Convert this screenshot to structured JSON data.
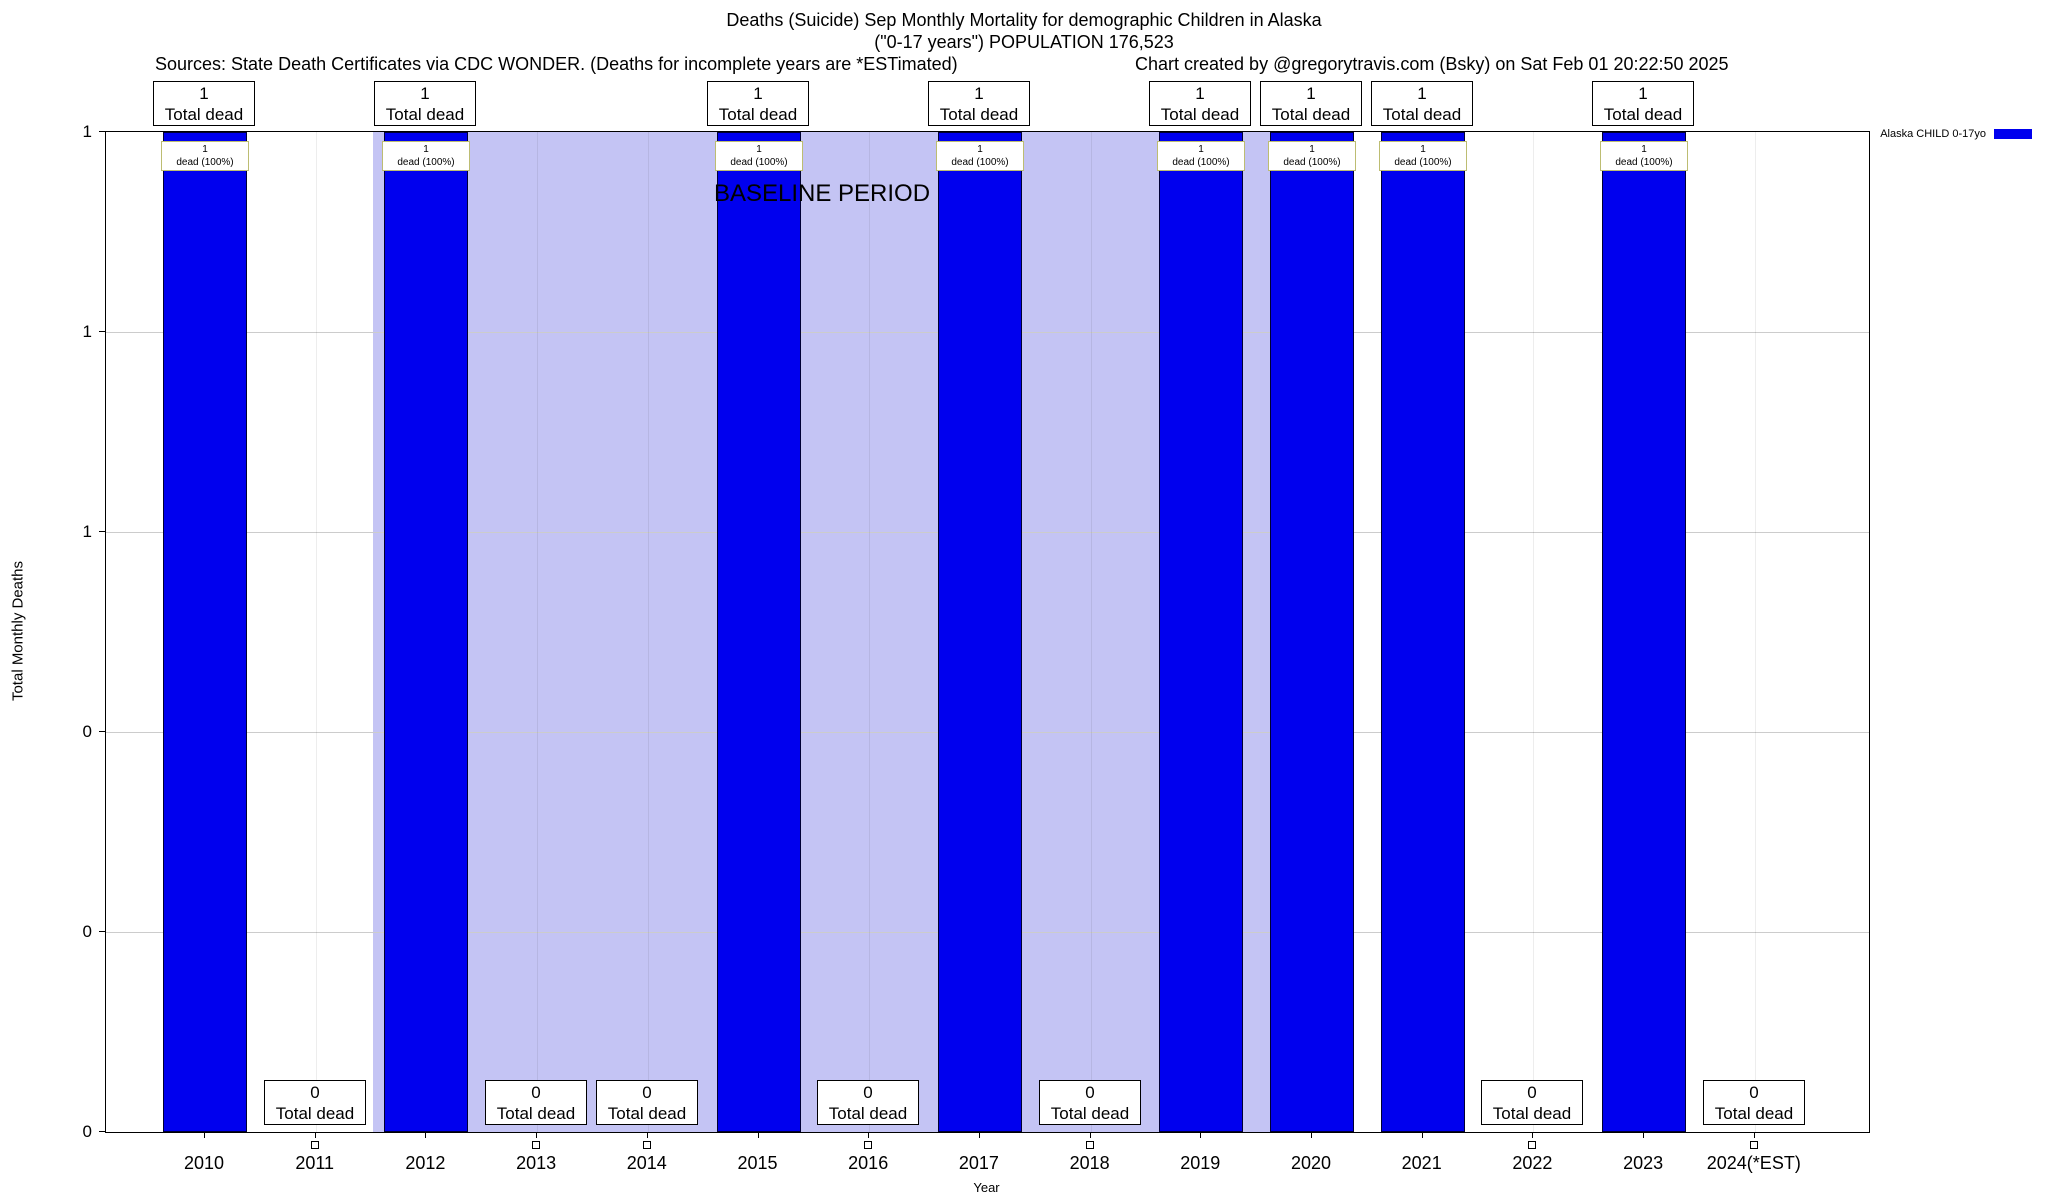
{
  "header": {
    "title": "Deaths (Suicide) Sep Monthly Mortality for demographic Children in Alaska",
    "subtitle": "(\"0-17 years\") POPULATION 176,523",
    "sources": "Sources: State Death Certificates via CDC WONDER. (Deaths for incomplete years are *ESTimated)",
    "credit": "Chart created by @gregorytravis.com (Bsky) on Sat Feb 01 20:22:50 2025"
  },
  "legend": {
    "label": "Alaska CHILD 0-17yo",
    "color": "#0000ee"
  },
  "axes": {
    "xlabel": "Year",
    "ylabel": "Total Monthly Deaths",
    "ytick_labels_bottom_to_top": [
      "0",
      "0",
      "0",
      "1",
      "1",
      "1"
    ]
  },
  "chart_data": {
    "type": "bar",
    "title": "Deaths (Suicide) Sep Monthly Mortality for demographic Children in Alaska",
    "subtitle": "(\"0-17 years\") POPULATION 176,523",
    "xlabel": "Year",
    "ylabel": "Total Monthly Deaths",
    "ylim": [
      0,
      1
    ],
    "grid": true,
    "legend_position": "top-right",
    "series_name": "Alaska CHILD 0-17yo",
    "bar_color": "#0000ee",
    "band_color": "#c4c4f4",
    "inbar_border_color": "#bdbd72",
    "grid_color": "#cccccc",
    "categories": [
      "2010",
      "2011",
      "2012",
      "2013",
      "2014",
      "2015",
      "2016",
      "2017",
      "2018",
      "2019",
      "2020",
      "2021",
      "2022",
      "2023",
      "2024(*EST)"
    ],
    "values": [
      1,
      0,
      1,
      0,
      0,
      1,
      0,
      1,
      0,
      1,
      1,
      1,
      0,
      1,
      0
    ],
    "total_box_word": "Total dead",
    "inbar_word": "dead (100%)",
    "baseline_band": {
      "label": "BASELINE PERIOD",
      "start_index": 1.52,
      "end_index": 9.63
    }
  }
}
